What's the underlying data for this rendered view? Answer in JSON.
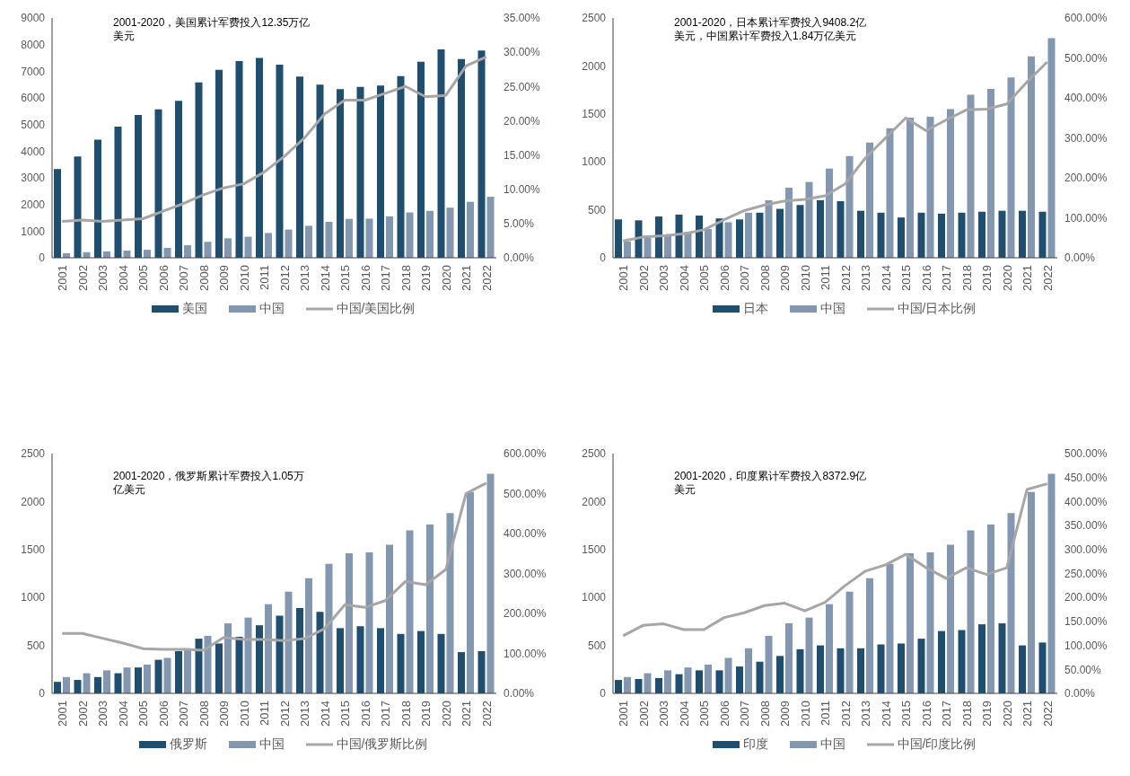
{
  "chart_data": [
    {
      "type": "bar",
      "annotations": [
        "2001-2020，美国累计军费投入12.35万亿美元"
      ],
      "categories": [
        "2001",
        "2002",
        "2003",
        "2004",
        "2005",
        "2006",
        "2007",
        "2008",
        "2009",
        "2010",
        "2011",
        "2012",
        "2013",
        "2014",
        "2015",
        "2016",
        "2017",
        "2018",
        "2019",
        "2020",
        "2021",
        "2022"
      ],
      "series": [
        {
          "name": "美国",
          "color": "#1f4e6e",
          "values": [
            3330,
            3800,
            4430,
            4920,
            5360,
            5570,
            5890,
            6580,
            7050,
            7380,
            7500,
            7250,
            6800,
            6500,
            6330,
            6410,
            6460,
            6820,
            7360,
            7820,
            7460,
            7780
          ]
        },
        {
          "name": "中国",
          "color": "#8497b0",
          "values": [
            170,
            210,
            240,
            270,
            300,
            370,
            470,
            600,
            730,
            790,
            930,
            1060,
            1200,
            1350,
            1460,
            1470,
            1550,
            1700,
            1760,
            1880,
            2100,
            2290
          ]
        },
        {
          "name": "中国/美国比例",
          "type": "line",
          "axis": "y2",
          "color": "#a6a6a6",
          "values": [
            5.3,
            5.5,
            5.3,
            5.5,
            5.7,
            6.8,
            7.9,
            9.2,
            10.2,
            10.8,
            12.5,
            14.8,
            17.5,
            21.0,
            23.0,
            23.0,
            24.0,
            25.0,
            23.5,
            23.7,
            28.0,
            29.3
          ]
        }
      ],
      "ylim": [
        0,
        9000
      ],
      "yticks": [
        0,
        1000,
        2000,
        3000,
        4000,
        5000,
        6000,
        7000,
        8000,
        9000
      ],
      "y2lim": [
        0,
        35
      ],
      "y2ticks": [
        {
          "value": 0,
          "label": "0.00%"
        },
        {
          "value": 5,
          "label": "5.00%"
        },
        {
          "value": 10,
          "label": "10.00%"
        },
        {
          "value": 15,
          "label": "15.00%"
        },
        {
          "value": 20,
          "label": "20.00%"
        },
        {
          "value": 25,
          "label": "25.00%"
        },
        {
          "value": 30,
          "label": "30.00%"
        },
        {
          "value": 35,
          "label": "35.00%"
        }
      ],
      "grid": false,
      "legend": "bottom",
      "marker": "none"
    },
    {
      "type": "bar",
      "annotations": [
        "2001-2020，日本累计军费投入9408.2亿美元，中国累计军费投入1.84万亿美元"
      ],
      "categories": [
        "2001",
        "2002",
        "2003",
        "2004",
        "2005",
        "2006",
        "2007",
        "2008",
        "2009",
        "2010",
        "2011",
        "2012",
        "2013",
        "2014",
        "2015",
        "2016",
        "2017",
        "2018",
        "2019",
        "2020",
        "2021",
        "2022"
      ],
      "series": [
        {
          "name": "日本",
          "color": "#1f4e6e",
          "values": [
            400,
            390,
            430,
            450,
            440,
            410,
            400,
            470,
            510,
            550,
            600,
            590,
            490,
            470,
            420,
            470,
            460,
            470,
            480,
            490,
            490,
            480
          ]
        },
        {
          "name": "中国",
          "color": "#8497b0",
          "values": [
            170,
            210,
            240,
            270,
            300,
            370,
            470,
            600,
            730,
            790,
            930,
            1060,
            1200,
            1350,
            1460,
            1470,
            1550,
            1700,
            1760,
            1880,
            2100,
            2290
          ]
        },
        {
          "name": "中国/日本比例",
          "type": "line",
          "axis": "y2",
          "color": "#a6a6a6",
          "values": [
            42,
            52,
            55,
            60,
            70,
            95,
            118,
            132,
            142,
            146,
            155,
            185,
            250,
            300,
            350,
            318,
            345,
            370,
            372,
            385,
            440,
            490
          ]
        }
      ],
      "ylim": [
        0,
        2500
      ],
      "yticks": [
        0,
        500,
        1000,
        1500,
        2000,
        2500
      ],
      "y2lim": [
        0,
        600
      ],
      "y2ticks": [
        {
          "value": 0,
          "label": "0.00%"
        },
        {
          "value": 100,
          "label": "100.00%"
        },
        {
          "value": 200,
          "label": "200.00%"
        },
        {
          "value": 300,
          "label": "300.00%"
        },
        {
          "value": 400,
          "label": "400.00%"
        },
        {
          "value": 500,
          "label": "500.00%"
        },
        {
          "value": 600,
          "label": "600.00%"
        }
      ],
      "grid": false,
      "legend": "bottom",
      "marker": "none"
    },
    {
      "type": "bar",
      "annotations": [
        "2001-2020，俄罗斯累计军费投入1.05万亿美元"
      ],
      "categories": [
        "2001",
        "2002",
        "2003",
        "2004",
        "2005",
        "2006",
        "2007",
        "2008",
        "2009",
        "2010",
        "2011",
        "2012",
        "2013",
        "2014",
        "2015",
        "2016",
        "2017",
        "2018",
        "2019",
        "2020",
        "2021",
        "2022"
      ],
      "series": [
        {
          "name": "俄罗斯",
          "color": "#1f4e6e",
          "values": [
            120,
            140,
            170,
            210,
            270,
            350,
            440,
            570,
            520,
            590,
            710,
            810,
            890,
            850,
            680,
            700,
            680,
            620,
            650,
            620,
            430,
            440
          ]
        },
        {
          "name": "中国",
          "color": "#8497b0",
          "values": [
            170,
            210,
            240,
            270,
            300,
            370,
            470,
            600,
            730,
            790,
            930,
            1060,
            1200,
            1350,
            1460,
            1470,
            1550,
            1700,
            1760,
            1880,
            2100,
            2290
          ]
        },
        {
          "name": "中国/俄罗斯比例",
          "type": "line",
          "axis": "y2",
          "color": "#a6a6a6",
          "values": [
            150,
            150,
            138,
            126,
            112,
            110,
            110,
            108,
            140,
            135,
            135,
            132,
            137,
            162,
            222,
            215,
            232,
            280,
            272,
            310,
            500,
            526
          ]
        }
      ],
      "ylim": [
        0,
        2500
      ],
      "yticks": [
        0,
        500,
        1000,
        1500,
        2000,
        2500
      ],
      "y2lim": [
        0,
        600
      ],
      "y2ticks": [
        {
          "value": 0,
          "label": "0.00%"
        },
        {
          "value": 100,
          "label": "100.00%"
        },
        {
          "value": 200,
          "label": "200.00%"
        },
        {
          "value": 300,
          "label": "300.00%"
        },
        {
          "value": 400,
          "label": "400.00%"
        },
        {
          "value": 500,
          "label": "500.00%"
        },
        {
          "value": 600,
          "label": "600.00%"
        }
      ],
      "grid": false,
      "legend": "bottom",
      "marker": "none"
    },
    {
      "type": "bar",
      "annotations": [
        "2001-2020，印度累计军费投入8372.9亿美元"
      ],
      "categories": [
        "2001",
        "2002",
        "2003",
        "2004",
        "2005",
        "2006",
        "2007",
        "2008",
        "2009",
        "2010",
        "2011",
        "2012",
        "2013",
        "2014",
        "2015",
        "2016",
        "2017",
        "2018",
        "2019",
        "2020",
        "2021",
        "2022"
      ],
      "series": [
        {
          "name": "印度",
          "color": "#1f4e6e",
          "values": [
            140,
            150,
            160,
            200,
            240,
            240,
            280,
            330,
            390,
            460,
            500,
            470,
            470,
            510,
            520,
            570,
            650,
            660,
            720,
            730,
            500,
            530
          ]
        },
        {
          "name": "中国",
          "color": "#8497b0",
          "values": [
            170,
            210,
            240,
            270,
            300,
            370,
            470,
            600,
            730,
            790,
            930,
            1060,
            1200,
            1350,
            1460,
            1470,
            1550,
            1700,
            1760,
            1880,
            2100,
            2290
          ]
        },
        {
          "name": "中国/印度比例",
          "type": "line",
          "axis": "y2",
          "color": "#a6a6a6",
          "values": [
            120,
            142,
            145,
            133,
            133,
            158,
            168,
            183,
            188,
            172,
            190,
            225,
            255,
            268,
            290,
            262,
            240,
            262,
            248,
            262,
            425,
            437
          ]
        }
      ],
      "ylim": [
        0,
        2500
      ],
      "yticks": [
        0,
        500,
        1000,
        1500,
        2000,
        2500
      ],
      "y2lim": [
        0,
        500
      ],
      "y2ticks": [
        {
          "value": 0,
          "label": "0.00%"
        },
        {
          "value": 50,
          "label": "50.00%"
        },
        {
          "value": 100,
          "label": "100.00%"
        },
        {
          "value": 150,
          "label": "150.00%"
        },
        {
          "value": 200,
          "label": "200.00%"
        },
        {
          "value": 250,
          "label": "250.00%"
        },
        {
          "value": 300,
          "label": "300.00%"
        },
        {
          "value": 350,
          "label": "350.00%"
        },
        {
          "value": 400,
          "label": "400.00%"
        },
        {
          "value": 450,
          "label": "450.00%"
        },
        {
          "value": 500,
          "label": "500.00%"
        }
      ],
      "grid": false,
      "legend": "bottom",
      "marker": "none"
    }
  ]
}
